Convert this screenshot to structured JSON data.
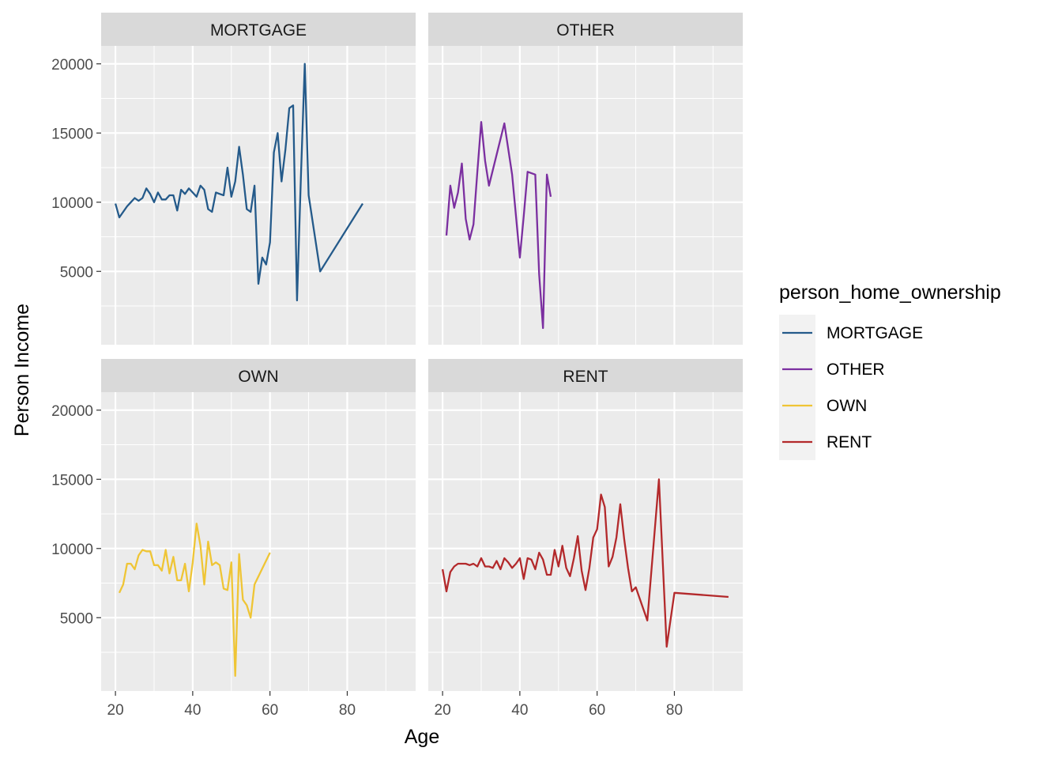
{
  "chart_data": {
    "type": "line",
    "xlabel": "Age",
    "ylabel": "Person Income",
    "xlim": [
      16.3,
      97.7
    ],
    "ylim": [
      -300,
      21300
    ],
    "x_ticks": [
      20,
      40,
      60,
      80
    ],
    "y_ticks": [
      5000,
      10000,
      15000,
      20000
    ],
    "grid": true,
    "legend": {
      "title": "person_home_ownership",
      "position": "right"
    },
    "facets": [
      {
        "name": "MORTGAGE",
        "color": "#245A8A",
        "x": [
          20,
          21,
          22,
          23,
          24,
          25,
          26,
          27,
          28,
          29,
          30,
          31,
          32,
          33,
          34,
          35,
          36,
          37,
          38,
          39,
          40,
          41,
          42,
          43,
          44,
          45,
          46,
          47,
          48,
          49,
          50,
          51,
          52,
          53,
          54,
          55,
          56,
          57,
          58,
          59,
          60,
          61,
          62,
          63,
          64,
          65,
          66,
          67,
          68,
          69,
          70,
          73,
          84
        ],
        "y": [
          9900,
          8900,
          9300,
          9700,
          10000,
          10300,
          10100,
          10300,
          11000,
          10600,
          10000,
          10700,
          10200,
          10200,
          10500,
          10500,
          9400,
          10900,
          10600,
          11000,
          10700,
          10400,
          11200,
          10900,
          9500,
          9300,
          10700,
          10600,
          10500,
          12500,
          10400,
          11500,
          14000,
          12000,
          9500,
          9300,
          11200,
          4100,
          6000,
          5500,
          7100,
          13600,
          15000,
          11500,
          13800,
          16800,
          17000,
          2900,
          11800,
          20000,
          10500,
          5000,
          9900
        ]
      },
      {
        "name": "OTHER",
        "color": "#7B2FA0",
        "x": [
          21,
          22,
          23,
          24,
          25,
          26,
          27,
          28,
          29,
          30,
          31,
          32,
          36,
          38,
          40,
          41,
          42,
          44,
          45,
          46,
          47,
          48
        ],
        "y": [
          7600,
          11200,
          9600,
          10700,
          12800,
          8800,
          7300,
          8400,
          12200,
          15800,
          13000,
          11200,
          15700,
          12000,
          6000,
          9000,
          12200,
          12000,
          4800,
          900,
          12000,
          10400
        ]
      },
      {
        "name": "OWN",
        "color": "#EFC535",
        "x": [
          21,
          22,
          23,
          24,
          25,
          26,
          27,
          28,
          29,
          30,
          31,
          32,
          33,
          34,
          35,
          36,
          37,
          38,
          39,
          40,
          41,
          42,
          43,
          44,
          45,
          46,
          47,
          48,
          49,
          50,
          51,
          52,
          53,
          54,
          55,
          56,
          60
        ],
        "y": [
          6800,
          7400,
          8900,
          8900,
          8500,
          9500,
          9900,
          9800,
          9800,
          8800,
          8800,
          8400,
          9900,
          8200,
          9400,
          7700,
          7700,
          8900,
          6900,
          9000,
          11800,
          10200,
          7400,
          10500,
          8800,
          9000,
          8800,
          7100,
          7000,
          9000,
          800,
          9600,
          6300,
          5900,
          5000,
          7400,
          9700
        ]
      },
      {
        "name": "RENT",
        "color": "#B3292B",
        "x": [
          20,
          21,
          22,
          23,
          24,
          25,
          26,
          27,
          28,
          29,
          30,
          31,
          32,
          33,
          34,
          35,
          36,
          37,
          38,
          39,
          40,
          41,
          42,
          43,
          44,
          45,
          46,
          47,
          48,
          49,
          50,
          51,
          52,
          53,
          54,
          55,
          56,
          57,
          58,
          59,
          60,
          61,
          62,
          63,
          64,
          65,
          66,
          67,
          68,
          69,
          70,
          73,
          76,
          78,
          80,
          94
        ],
        "y": [
          8500,
          6900,
          8300,
          8700,
          8900,
          8900,
          8900,
          8800,
          8900,
          8700,
          9300,
          8700,
          8700,
          8600,
          9100,
          8500,
          9300,
          9000,
          8600,
          8900,
          9300,
          7800,
          9300,
          9200,
          8500,
          9700,
          9200,
          8100,
          8100,
          9900,
          8700,
          10200,
          8600,
          8000,
          9300,
          10900,
          8400,
          7000,
          8600,
          10800,
          11400,
          13900,
          13000,
          8700,
          9400,
          10800,
          13200,
          10700,
          8600,
          6900,
          7200,
          4800,
          15000,
          2900,
          6800,
          6500
        ]
      }
    ]
  }
}
